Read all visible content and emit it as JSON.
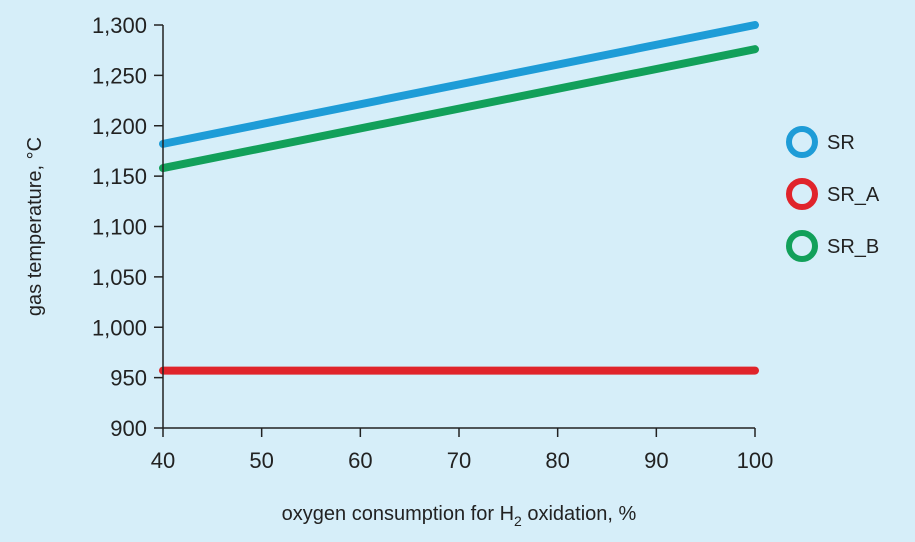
{
  "chart_data": {
    "type": "line",
    "title": "",
    "xlabel": "oxygen consumption for H",
    "xlabel_subscript": "2",
    "xlabel_suffix": " oxidation, %",
    "ylabel": "gas temperature, °C",
    "xlim": [
      40,
      100
    ],
    "ylim": [
      900,
      1300
    ],
    "x_ticks": [
      40,
      50,
      60,
      70,
      80,
      90,
      100
    ],
    "y_ticks": [
      900,
      950,
      1000,
      1050,
      1100,
      1150,
      1200,
      1250,
      1300
    ],
    "y_tick_labels": [
      "900",
      "950",
      "1,000",
      "1,050",
      "1,100",
      "1,150",
      "1,200",
      "1,250",
      "1,300"
    ],
    "grid": false,
    "legend_position": "right",
    "series": [
      {
        "name": "SR",
        "color": "#1e9cd7",
        "x": [
          40,
          100
        ],
        "y": [
          1182,
          1300
        ]
      },
      {
        "name": "SR_A",
        "color": "#e0242b",
        "x": [
          40,
          100
        ],
        "y": [
          957,
          957
        ]
      },
      {
        "name": "SR_B",
        "color": "#12a05a",
        "x": [
          40,
          100
        ],
        "y": [
          1158,
          1276
        ]
      }
    ]
  }
}
